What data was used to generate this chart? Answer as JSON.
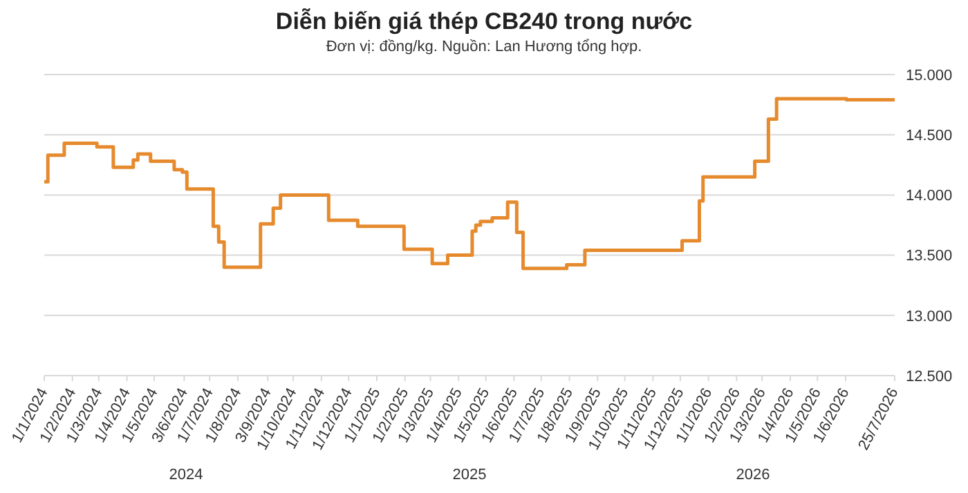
{
  "chart_data": {
    "type": "step",
    "title": "Diễn biến giá thép CB240 trong nước",
    "subtitle": "Đơn vị: đồng/kg. Nguồn: Lan Hương tổng hợp.",
    "x": [
      "2024-01-01",
      "2024-01-05",
      "2024-01-23",
      "2024-02-28",
      "2024-03-17",
      "2024-04-08",
      "2024-04-13",
      "2024-04-27",
      "2024-05-23",
      "2024-06-01",
      "2024-06-06",
      "2024-07-05",
      "2024-07-11",
      "2024-07-17",
      "2024-08-26",
      "2024-09-09",
      "2024-09-17",
      "2024-11-09",
      "2024-12-11",
      "2025-01-31",
      "2025-03-03",
      "2025-03-20",
      "2025-04-16",
      "2025-04-20",
      "2025-04-25",
      "2025-05-08",
      "2025-05-25",
      "2025-06-04",
      "2025-06-11",
      "2025-07-29",
      "2025-08-18",
      "2025-12-03",
      "2025-12-22",
      "2025-12-26",
      "2026-02-21",
      "2026-03-08",
      "2026-03-17",
      "2026-06-02",
      "2026-07-25"
    ],
    "series": [
      {
        "color": "#e68a2e",
        "values": [
          14110,
          14330,
          14430,
          14400,
          14230,
          14290,
          14340,
          14280,
          14210,
          14190,
          14050,
          13740,
          13610,
          13400,
          13760,
          13890,
          14000,
          13790,
          13740,
          13550,
          13430,
          13500,
          13700,
          13750,
          13780,
          13810,
          13940,
          13690,
          13390,
          13420,
          13540,
          13620,
          13950,
          14150,
          14280,
          14630,
          14800,
          14790,
          14790
        ]
      }
    ],
    "xlim": [
      "2024-01-01",
      "2026-07-25"
    ],
    "xticks": [
      {
        "value": "2024-01-01",
        "label": "1/1/2024"
      },
      {
        "value": "2024-02-01",
        "label": "1/2/2024"
      },
      {
        "value": "2024-03-01",
        "label": "1/3/2024"
      },
      {
        "value": "2024-04-01",
        "label": "1/4/2024"
      },
      {
        "value": "2024-05-01",
        "label": "1/5/2024"
      },
      {
        "value": "2024-06-03",
        "label": "3/6/2024"
      },
      {
        "value": "2024-07-01",
        "label": "1/7/2024"
      },
      {
        "value": "2024-08-01",
        "label": "1/8/2024"
      },
      {
        "value": "2024-09-03",
        "label": "3/9/2024"
      },
      {
        "value": "2024-10-01",
        "label": "1/10/2024"
      },
      {
        "value": "2024-11-01",
        "label": "1/11/2024"
      },
      {
        "value": "2024-12-01",
        "label": "1/12/2024"
      },
      {
        "value": "2025-01-01",
        "label": "1/1/2025"
      },
      {
        "value": "2025-02-01",
        "label": "1/2/2025"
      },
      {
        "value": "2025-03-01",
        "label": "1/3/2025"
      },
      {
        "value": "2025-04-01",
        "label": "1/4/2025"
      },
      {
        "value": "2025-05-01",
        "label": "1/5/2025"
      },
      {
        "value": "2025-06-01",
        "label": "1/6/2025"
      },
      {
        "value": "2025-07-01",
        "label": "1/7/2025"
      },
      {
        "value": "2025-08-01",
        "label": "1/8/2025"
      },
      {
        "value": "2025-09-01",
        "label": "1/9/2025"
      },
      {
        "value": "2025-10-01",
        "label": "1/10/2025"
      },
      {
        "value": "2025-11-01",
        "label": "1/11/2025"
      },
      {
        "value": "2025-12-01",
        "label": "1/12/2025"
      },
      {
        "value": "2026-01-01",
        "label": "1/1/2026"
      },
      {
        "value": "2026-02-01",
        "label": "1/2/2026"
      },
      {
        "value": "2026-03-01",
        "label": "1/3/2026"
      },
      {
        "value": "2026-04-01",
        "label": "1/4/2026"
      },
      {
        "value": "2026-05-01",
        "label": "1/5/2026"
      },
      {
        "value": "2026-06-01",
        "label": "1/6/2026"
      },
      {
        "value": "2026-07-25",
        "label": "25/7/2026"
      }
    ],
    "ylim": [
      12500,
      15000
    ],
    "yticks": [
      {
        "value": 12500,
        "label": "12.500"
      },
      {
        "value": 13000,
        "label": "13.000"
      },
      {
        "value": 13500,
        "label": "13.500"
      },
      {
        "value": 14000,
        "label": "14.000"
      },
      {
        "value": 14500,
        "label": "14.500"
      },
      {
        "value": 15000,
        "label": "15.000"
      }
    ],
    "grid": "y",
    "annotations": [
      "2024",
      "2025",
      "2026"
    ]
  }
}
